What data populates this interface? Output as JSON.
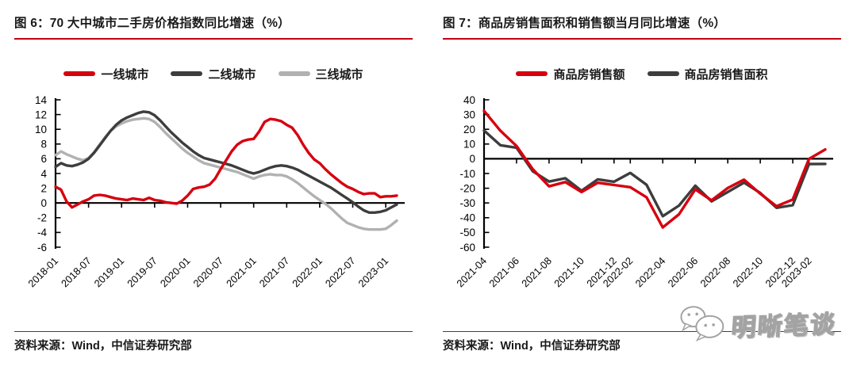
{
  "page": {
    "watermark_text": "明晰笔谈"
  },
  "colors": {
    "accent_red": "#d7000f",
    "line_dark": "#3d3d3d",
    "line_gray": "#b1b1b1",
    "axis_black": "#000000",
    "title_rule_red": "#c30010",
    "footer_rule_red": "#d7000f",
    "watermark_gray": "#a3a3a3"
  },
  "chart_data": [
    {
      "type": "line",
      "title": "图 6：70 大中城市二手房价格指数同比增速（%）",
      "source": "资料来源：Wind，中信证券研究部",
      "grid": false,
      "legend_position": "top",
      "ylim": [
        -6,
        14
      ],
      "y_ticks": [
        14,
        12,
        10,
        8,
        6,
        4,
        2,
        0,
        -2,
        -4,
        -6
      ],
      "x": [
        "2018-01",
        "2018-02",
        "2018-03",
        "2018-04",
        "2018-05",
        "2018-06",
        "2018-07",
        "2018-08",
        "2018-09",
        "2018-10",
        "2018-11",
        "2018-12",
        "2019-01",
        "2019-02",
        "2019-03",
        "2019-04",
        "2019-05",
        "2019-06",
        "2019-07",
        "2019-08",
        "2019-09",
        "2019-10",
        "2019-11",
        "2019-12",
        "2020-01",
        "2020-02",
        "2020-03",
        "2020-04",
        "2020-05",
        "2020-06",
        "2020-07",
        "2020-08",
        "2020-09",
        "2020-10",
        "2020-11",
        "2020-12",
        "2021-01",
        "2021-02",
        "2021-03",
        "2021-04",
        "2021-05",
        "2021-06",
        "2021-07",
        "2021-08",
        "2021-09",
        "2021-10",
        "2021-11",
        "2021-12",
        "2022-01",
        "2022-02",
        "2022-03",
        "2022-04",
        "2022-05",
        "2022-06",
        "2022-07",
        "2022-08",
        "2022-09",
        "2022-10",
        "2022-11",
        "2022-12",
        "2023-01",
        "2023-02",
        "2023-03"
      ],
      "x_tick_labels": [
        "2018-01",
        "2018-07",
        "2019-01",
        "2019-07",
        "2020-01",
        "2020-07",
        "2021-01",
        "2021-07",
        "2022-01",
        "2022-07",
        "2023-01"
      ],
      "x_tick_indices": [
        0,
        6,
        12,
        18,
        24,
        30,
        36,
        42,
        48,
        54,
        60
      ],
      "series": [
        {
          "name": "一线城市",
          "color": "#d7000f",
          "values": [
            2.2,
            1.8,
            0.2,
            -0.6,
            -0.2,
            0.2,
            0.5,
            1.0,
            1.1,
            1.0,
            0.8,
            0.6,
            0.5,
            0.4,
            0.6,
            0.5,
            0.4,
            0.7,
            0.4,
            0.3,
            0.1,
            0.0,
            -0.1,
            0.3,
            1.0,
            1.9,
            2.1,
            2.2,
            2.5,
            3.3,
            4.6,
            5.8,
            7.0,
            7.9,
            8.4,
            8.6,
            8.7,
            9.7,
            11.0,
            11.4,
            11.3,
            11.1,
            10.6,
            10.2,
            9.2,
            7.9,
            6.8,
            5.9,
            5.4,
            4.6,
            3.9,
            3.3,
            2.7,
            2.2,
            1.9,
            1.5,
            1.2,
            1.3,
            1.3,
            0.8,
            0.9,
            0.9,
            1.0
          ]
        },
        {
          "name": "二线城市",
          "color": "#3d3d3d",
          "values": [
            4.9,
            5.4,
            5.1,
            5.0,
            5.2,
            5.5,
            6.0,
            6.8,
            7.8,
            8.8,
            9.8,
            10.6,
            11.2,
            11.6,
            11.9,
            12.2,
            12.4,
            12.3,
            11.9,
            11.2,
            10.4,
            9.6,
            8.9,
            8.2,
            7.6,
            7.0,
            6.5,
            6.1,
            5.9,
            5.7,
            5.5,
            5.3,
            5.1,
            4.8,
            4.5,
            4.2,
            4.0,
            4.2,
            4.5,
            4.8,
            5.0,
            5.1,
            5.0,
            4.8,
            4.5,
            4.1,
            3.7,
            3.3,
            2.9,
            2.5,
            2.1,
            1.6,
            1.1,
            0.6,
            0.1,
            -0.5,
            -1.0,
            -1.3,
            -1.3,
            -1.2,
            -1.0,
            -0.6,
            -0.2
          ]
        },
        {
          "name": "三线城市",
          "color": "#b1b1b1",
          "values": [
            6.5,
            7.0,
            6.6,
            6.3,
            6.0,
            5.8,
            6.1,
            6.9,
            7.9,
            8.9,
            9.8,
            10.4,
            10.8,
            11.1,
            11.3,
            11.4,
            11.5,
            11.4,
            11.0,
            10.3,
            9.5,
            8.8,
            8.1,
            7.4,
            6.8,
            6.3,
            5.8,
            5.4,
            5.2,
            5.0,
            4.8,
            4.6,
            4.4,
            4.2,
            3.9,
            3.6,
            3.3,
            3.6,
            3.8,
            3.9,
            3.8,
            3.8,
            3.6,
            3.2,
            2.7,
            2.1,
            1.5,
            0.9,
            0.4,
            -0.1,
            -0.7,
            -1.4,
            -2.1,
            -2.7,
            -3.0,
            -3.3,
            -3.5,
            -3.6,
            -3.6,
            -3.6,
            -3.5,
            -3.0,
            -2.4
          ]
        }
      ]
    },
    {
      "type": "line",
      "title": "图 7：商品房销售面积和销售额当月同比增速（%）",
      "source": "资料来源：Wind，中信证券研究部",
      "grid": false,
      "legend_position": "top",
      "ylim": [
        -60,
        40
      ],
      "y_ticks": [
        40,
        30,
        20,
        10,
        0,
        -10,
        -20,
        -30,
        -40,
        -50,
        -60
      ],
      "x": [
        "2021-04",
        "2021-05",
        "2021-06",
        "2021-07",
        "2021-08",
        "2021-09",
        "2021-10",
        "2021-11",
        "2021-12",
        "2022-02",
        "2022-03",
        "2022-04",
        "2022-05",
        "2022-06",
        "2022-07",
        "2022-08",
        "2022-09",
        "2022-10",
        "2022-11",
        "2022-12",
        "2023-02",
        "2023-03"
      ],
      "x_tick_labels": [
        "2021-04",
        "2021-06",
        "2021-08",
        "2021-10",
        "2021-12",
        "2022-02",
        "2022-04",
        "2022-06",
        "2022-08",
        "2022-10",
        "2022-12",
        "2023-02"
      ],
      "x_tick_indices": [
        0,
        2,
        4,
        6,
        8,
        9,
        11,
        13,
        15,
        17,
        19,
        20
      ],
      "series": [
        {
          "name": "商品房销售额",
          "color": "#d7000f",
          "values": [
            32.5,
            19.1,
            8.6,
            -7.1,
            -18.7,
            -15.8,
            -22.6,
            -16.3,
            -17.8,
            -19.3,
            -26.2,
            -46.6,
            -37.7,
            -20.8,
            -28.2,
            -19.9,
            -14.2,
            -23.7,
            -32.2,
            -27.7,
            -0.1,
            6.3
          ]
        },
        {
          "name": "商品房销售面积",
          "color": "#3d3d3d",
          "values": [
            19.2,
            9.2,
            7.5,
            -8.5,
            -15.5,
            -13.2,
            -21.7,
            -14.0,
            -15.6,
            -9.6,
            -17.7,
            -39.0,
            -31.8,
            -18.3,
            -28.9,
            -22.6,
            -16.2,
            -23.2,
            -33.3,
            -31.5,
            -3.6,
            -3.5
          ]
        }
      ]
    }
  ]
}
